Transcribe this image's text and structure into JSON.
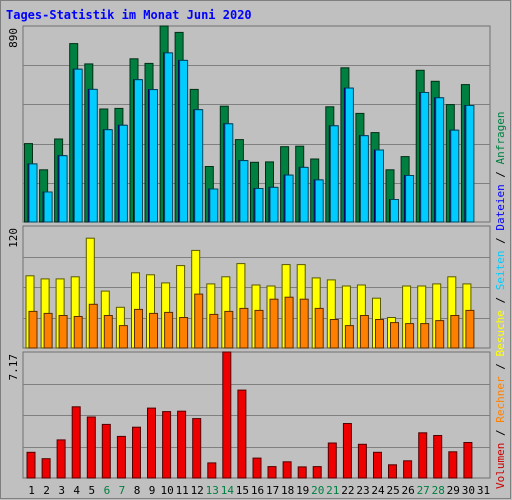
{
  "title": "Tages-Statistik im Monat Juni 2020",
  "legend": [
    {
      "text": "Volumen",
      "color": "#cc0000"
    },
    {
      "text": " / ",
      "color": "#000000"
    },
    {
      "text": "Rechner",
      "color": "#ff8000"
    },
    {
      "text": " / ",
      "color": "#000000"
    },
    {
      "text": "Besuche",
      "color": "#ffff00"
    },
    {
      "text": " / ",
      "color": "#000000"
    },
    {
      "text": "Seiten",
      "color": "#00ccff"
    },
    {
      "text": " / ",
      "color": "#000000"
    },
    {
      "text": "Dateien",
      "color": "#0000ff"
    },
    {
      "text": " / ",
      "color": "#000000"
    },
    {
      "text": "Anfragen",
      "color": "#008040"
    }
  ],
  "chart_data": [
    {
      "type": "bar",
      "panel": "top",
      "ytick": "890",
      "ylim": [
        0,
        890
      ],
      "grid": true,
      "x": [
        "1",
        "2",
        "3",
        "4",
        "5",
        "6",
        "7",
        "8",
        "9",
        "10",
        "11",
        "12",
        "13",
        "14",
        "15",
        "16",
        "17",
        "18",
        "19",
        "20",
        "21",
        "22",
        "23",
        "24",
        "25",
        "26",
        "27",
        "28",
        "29",
        "30",
        "31"
      ],
      "weekend_days": [
        6,
        7,
        13,
        14,
        20,
        21,
        27,
        28
      ],
      "weekend_color": "#008040",
      "series": [
        {
          "name": "Anfragen",
          "color": "#008040",
          "values": [
            356,
            237,
            377,
            810,
            718,
            513,
            516,
            741,
            720,
            890,
            861,
            602,
            252,
            526,
            374,
            271,
            273,
            342,
            344,
            286,
            523,
            700,
            493,
            406,
            237,
            297,
            689,
            639,
            533,
            624,
            null
          ]
        },
        {
          "name": "Dateien",
          "color": "#0000ff",
          "values": [
            264,
            136,
            301,
            694,
            602,
            419,
            439,
            646,
            601,
            768,
            734,
            510,
            150,
            446,
            279,
            152,
            157,
            213,
            248,
            191,
            437,
            608,
            392,
            327,
            102,
            211,
            588,
            564,
            417,
            529,
            null
          ]
        },
        {
          "name": "Seiten",
          "color": "#00ccff",
          "values": [
            264,
            136,
            301,
            694,
            602,
            419,
            439,
            646,
            601,
            768,
            734,
            510,
            150,
            446,
            279,
            152,
            157,
            213,
            248,
            191,
            437,
            608,
            392,
            327,
            102,
            211,
            588,
            564,
            417,
            529,
            null
          ]
        }
      ]
    },
    {
      "type": "bar",
      "panel": "middle",
      "ytick": "120",
      "ylim": [
        0,
        120
      ],
      "grid": true,
      "series": [
        {
          "name": "Besuche",
          "color": "#ffff00",
          "values": [
            71,
            68,
            68,
            70,
            108,
            56,
            40,
            74,
            72,
            64,
            81,
            96,
            63,
            70,
            83,
            62,
            61,
            82,
            82,
            69,
            67,
            61,
            62,
            49,
            30,
            61,
            61,
            63,
            70,
            63,
            null
          ]
        },
        {
          "name": "Rechner",
          "color": "#ff8000",
          "values": [
            36,
            34,
            32,
            31,
            43,
            32,
            22,
            38,
            34,
            35,
            30,
            53,
            33,
            36,
            39,
            37,
            48,
            50,
            48,
            39,
            28,
            22,
            32,
            28,
            25,
            24,
            24,
            27,
            32,
            37,
            null
          ]
        }
      ]
    },
    {
      "type": "bar",
      "panel": "bottom",
      "ytick": "7.17",
      "ylim": [
        0,
        7.17
      ],
      "grid": true,
      "series": [
        {
          "name": "Volumen",
          "color": "#ee0000",
          "values": [
            1.46,
            1.1,
            2.17,
            4.05,
            3.47,
            3.05,
            2.37,
            2.89,
            3.98,
            3.78,
            3.8,
            3.38,
            0.86,
            7.17,
            5.0,
            1.13,
            0.65,
            0.92,
            0.63,
            0.65,
            1.99,
            3.1,
            1.92,
            1.46,
            0.75,
            0.98,
            2.57,
            2.42,
            1.49,
            2.02,
            null
          ]
        }
      ]
    }
  ]
}
